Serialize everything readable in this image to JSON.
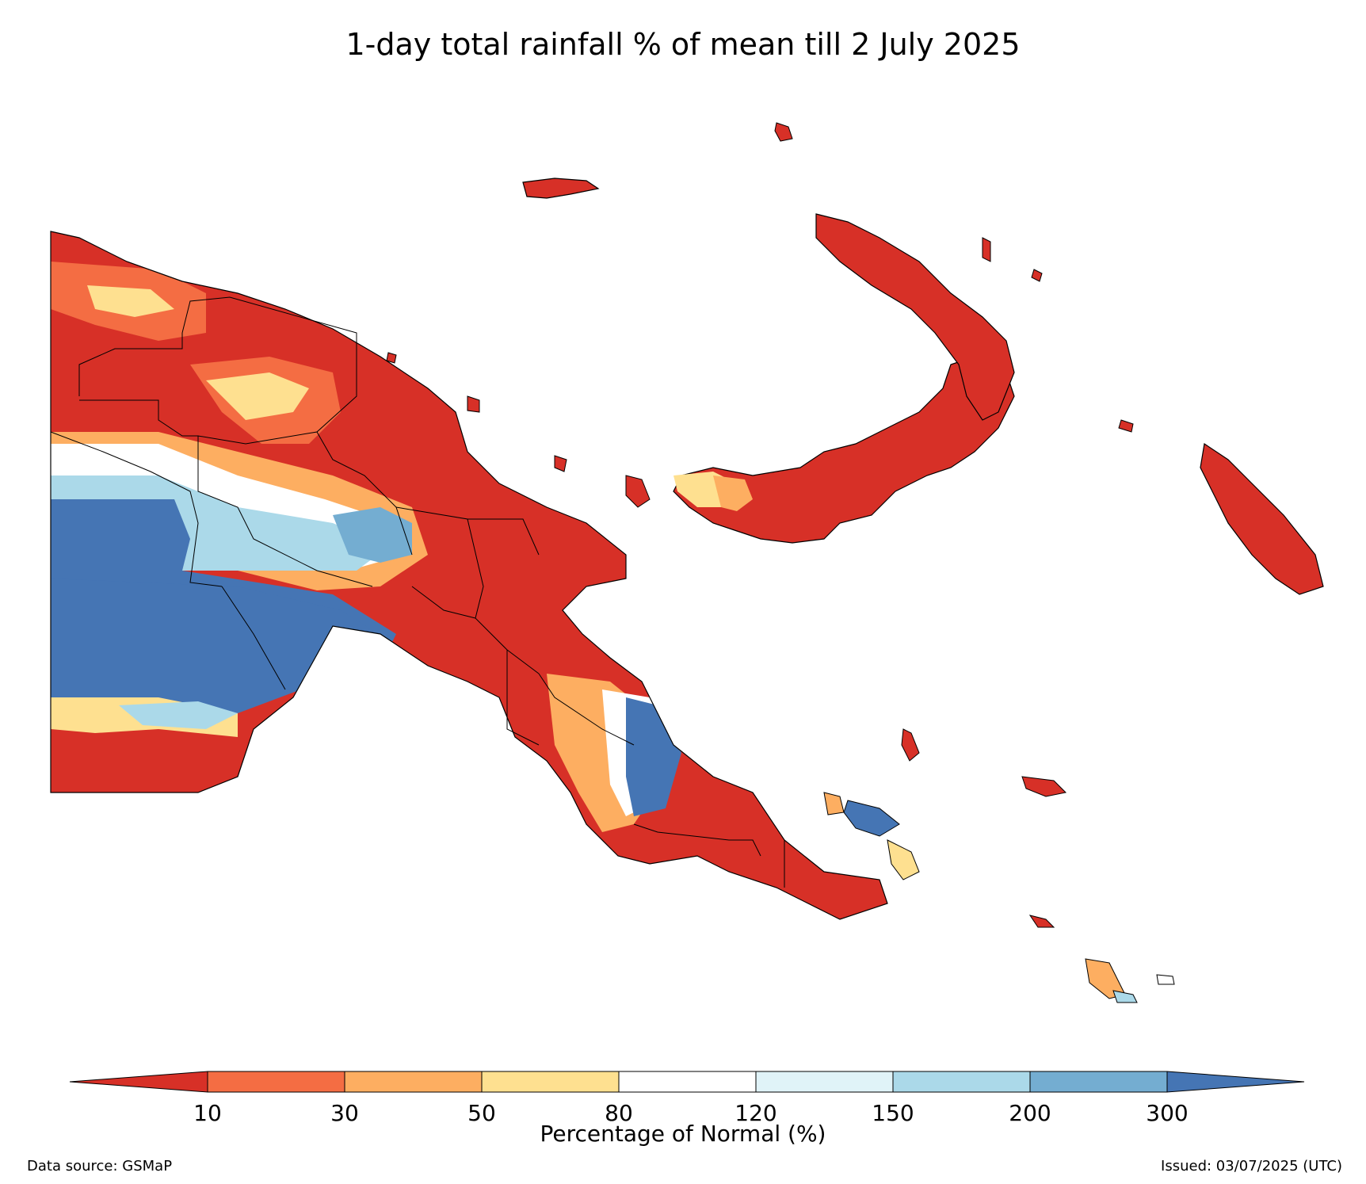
{
  "title": "1-day total rainfall % of mean till 2 July 2025",
  "colorbar": {
    "label": "Percentage of Normal (%)",
    "ticks": [
      "10",
      "30",
      "50",
      "80",
      "120",
      "150",
      "200",
      "300"
    ],
    "categories": [
      {
        "range": "<10",
        "color": "#d73027"
      },
      {
        "range": "10-30",
        "color": "#f46d43"
      },
      {
        "range": "30-50",
        "color": "#fdae61"
      },
      {
        "range": "50-80",
        "color": "#fee090"
      },
      {
        "range": "80-120",
        "color": "#ffffff"
      },
      {
        "range": "120-150",
        "color": "#e0f3f8"
      },
      {
        "range": "150-200",
        "color": "#abd9e9"
      },
      {
        "range": "200-300",
        "color": "#74add1"
      },
      {
        "range": ">300",
        "color": "#4575b4"
      }
    ]
  },
  "footer": {
    "source": "Data source: GSMaP",
    "issued": "Issued: 03/07/2025 (UTC)"
  }
}
